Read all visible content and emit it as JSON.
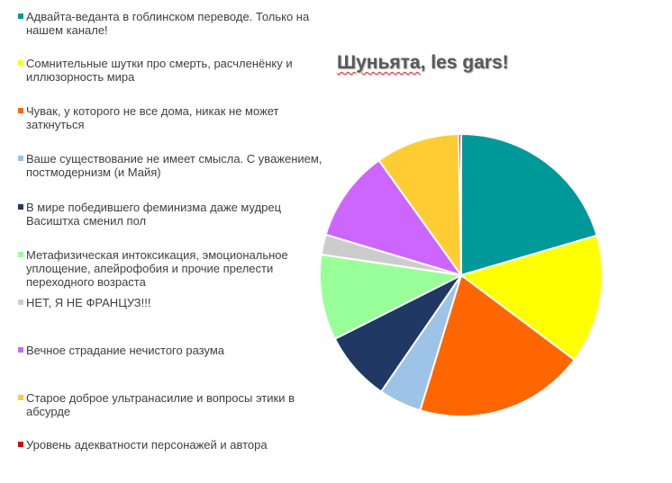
{
  "chart_data": {
    "type": "pie",
    "title_part1": "Шуньята",
    "title_part2": ", les gars!",
    "legend_position": "left",
    "start": "top, clockwise",
    "slices": [
      {
        "label": "Адвайта-веданта в гоблинском переводе. Только на нашем канале!",
        "value": 20.5,
        "color": "#009999"
      },
      {
        "label": "Сомнительные шутки про смерть, расчленёнку и иллюзорность мира",
        "value": 14.8,
        "color": "#FFFF00"
      },
      {
        "label": "Чувак, у которого не все дома, никак не может заткнуться",
        "value": 19.5,
        "color": "#FF6600"
      },
      {
        "label": "Ваше существование не имеет смысла. С уважением, постмодернизм (и Майя)",
        "value": 4.9,
        "color": "#9DC3E6"
      },
      {
        "label": "В мире победившего феминизма даже мудрец Васиштха сменил пол",
        "value": 8.0,
        "color": "#1F3864"
      },
      {
        "label": "Метафизическая интоксикация, эмоциональное уплощение, апейрофобия и прочие прелести переходного возраста",
        "value": 9.8,
        "color": "#99FF99"
      },
      {
        "label": "НЕТ, Я НЕ ФРАНЦУЗ!!!",
        "value": 2.3,
        "color": "#CCCCCC"
      },
      {
        "label": "Вечное страдание нечистого разума",
        "value": 10.5,
        "color": "#CC66FF"
      },
      {
        "label": "Старое доброе ультранасилие и вопросы этики в абсурде",
        "value": 9.6,
        "color": "#FFCC33"
      },
      {
        "label": "Уровень адекватности персонажей и автора",
        "value": 0.3,
        "color": "#E00000"
      }
    ]
  }
}
